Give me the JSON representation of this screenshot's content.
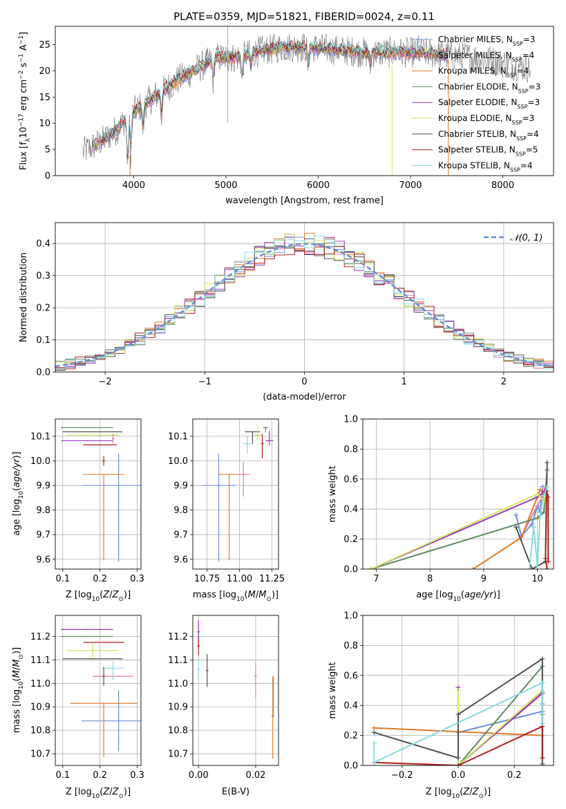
{
  "colors": {
    "Chabrier MILES": "#6a8fdc",
    "Salpeter MILES": "#e07ba6",
    "Kroupa MILES": "#e07a28",
    "Chabrier ELODIE": "#5e8a62",
    "Salpeter ELODIE": "#9a35b7",
    "Kroupa ELODIE": "#d0e55c",
    "Chabrier STELIB": "#505050",
    "Salpeter STELIB": "#b01c1c",
    "Kroupa STELIB": "#86dbe0",
    "normal": "#5b8fd8"
  },
  "chart_data": [
    {
      "id": "spectrum",
      "type": "line",
      "title": "PLATE=0359, MJD=51821, FIBERID=0024, z=0.11",
      "xlabel": "wavelength [Angstrom, rest frame]",
      "ylabel_parts": [
        "Flux [f",
        "λ",
        "10",
        "−17",
        " erg cm",
        "−2",
        " s",
        "−1",
        " A",
        "−1",
        "]"
      ],
      "xlim": [
        3150,
        8550
      ],
      "ylim": [
        0,
        28.5
      ],
      "xticks": [
        4000,
        5000,
        6000,
        7000,
        8000
      ],
      "yticks": [
        0,
        5,
        10,
        15,
        20,
        25
      ],
      "grid": false,
      "legend_position": "right",
      "legend": [
        {
          "name": "Chabrier MILES",
          "nssp": "3"
        },
        {
          "name": "Salpeter MILES",
          "nssp": "4"
        },
        {
          "name": "Kroupa MILES",
          "nssp": "4"
        },
        {
          "name": "Chabrier ELODIE",
          "nssp": "3"
        },
        {
          "name": "Salpeter ELODIE",
          "nssp": "3"
        },
        {
          "name": "Kroupa ELODIE",
          "nssp": "3"
        },
        {
          "name": "Chabrier STELIB",
          "nssp": "4"
        },
        {
          "name": "Salpeter STELIB",
          "nssp": "5"
        },
        {
          "name": "Kroupa STELIB",
          "nssp": "4"
        }
      ],
      "legend_nssp_label": "N",
      "legend_nssp_sub": "SSP",
      "continuum": {
        "x": [
          3450,
          3550,
          3650,
          3800,
          3950,
          4100,
          4300,
          4500,
          4700,
          4900,
          5100,
          5300,
          5600,
          5900,
          6200,
          6500,
          6800,
          7100,
          7400,
          7700,
          8000,
          8300
        ],
        "y": [
          4.5,
          5.5,
          6.5,
          8.5,
          11.5,
          13.5,
          16,
          18.5,
          20.5,
          22.5,
          22.5,
          23.5,
          24.5,
          24.5,
          24,
          23.5,
          23.5,
          23.5,
          23,
          22.5,
          21.5,
          20.5
        ]
      },
      "observed_range": [
        3450,
        8300
      ],
      "model_range": [
        3550,
        7400
      ]
    },
    {
      "id": "residuals",
      "type": "step",
      "xlabel": "(data-model)/error",
      "ylabel": "Normed distribution",
      "xlim": [
        -2.5,
        2.5
      ],
      "ylim": [
        0,
        0.465
      ],
      "xticks": [
        -2,
        -1,
        0,
        1,
        2
      ],
      "yticks": [
        0.0,
        0.1,
        0.2,
        0.3,
        0.4
      ],
      "grid": true,
      "legend_position": "top-right",
      "normal_label": "𝒩(0, 1)",
      "bin_width": 0.1
    },
    {
      "id": "age_vs_Z",
      "type": "errorbar",
      "xlabel": "Z [log10(Z/Z⊙)]",
      "ylabel": "age [log10(age/yr)]",
      "xlim": [
        0.08,
        0.31
      ],
      "ylim": [
        9.56,
        10.17
      ],
      "xticks": [
        0.1,
        0.2,
        0.3
      ],
      "yticks": [
        9.6,
        9.7,
        9.8,
        9.9,
        10.0,
        10.1
      ],
      "grid": true,
      "points": [
        {
          "model": "Chabrier MILES",
          "x": 0.25,
          "xerr": 0.1,
          "y": 9.9,
          "yerr_lo": 0.31,
          "yerr_hi": 0.13
        },
        {
          "model": "Kroupa MILES",
          "x": 0.21,
          "xerr": 0.055,
          "y": 9.945,
          "yerr_lo": 0.35,
          "yerr_hi": 0.0
        },
        {
          "model": "Salpeter STELIB",
          "x": 0.21,
          "xerr": 0.0,
          "y": 10.0,
          "yerr_lo": 0.02,
          "yerr_hi": 0.02
        },
        {
          "model": "Salpeter ELODIE",
          "x": 0.165,
          "xerr": 0.07,
          "y": 10.082,
          "yerr_lo": 0.0,
          "yerr_hi": 0.0
        },
        {
          "model": "Chabrier ELODIE",
          "x": 0.165,
          "xerr": 0.07,
          "y": 10.135,
          "yerr_lo": 0.0,
          "yerr_hi": 0.0
        },
        {
          "model": "Kroupa ELODIE",
          "x": 0.18,
          "xerr": 0.07,
          "y": 10.105,
          "yerr_lo": 0.0,
          "yerr_hi": 0.0
        },
        {
          "model": "Chabrier STELIB",
          "x": 0.18,
          "xerr": 0.08,
          "y": 10.118,
          "yerr_lo": 0.0,
          "yerr_hi": 0.0
        },
        {
          "model": "Salpeter MILES",
          "x": 0.235,
          "xerr": 0.0,
          "y": 10.09,
          "yerr_lo": 0.02,
          "yerr_hi": 0.02
        },
        {
          "model": "Salpeter STELIB",
          "x": 0.2,
          "xerr": 0.045,
          "y": 10.065,
          "yerr_lo": 0.0,
          "yerr_hi": 0.0
        }
      ]
    },
    {
      "id": "age_vs_mass",
      "type": "errorbar",
      "xlabel": "mass [log10(M/M⊙)]",
      "xlim": [
        10.64,
        11.3
      ],
      "ylim": [
        9.56,
        10.17
      ],
      "xticks": [
        10.75,
        11.0,
        11.25
      ],
      "yticks": [
        9.6,
        9.7,
        9.8,
        9.9,
        10.0,
        10.1
      ],
      "grid": true,
      "points": [
        {
          "model": "Chabrier MILES",
          "x": 10.84,
          "xerr": 0.13,
          "y": 9.9,
          "yerr_lo": 0.31,
          "yerr_hi": 0.13
        },
        {
          "model": "Kroupa MILES",
          "x": 10.92,
          "xerr": 0.08,
          "y": 9.945,
          "yerr_lo": 0.35,
          "yerr_hi": 0.0
        },
        {
          "model": "Salpeter MILES",
          "x": 11.03,
          "xerr": 0.05,
          "y": 9.945,
          "yerr_lo": 0.09,
          "yerr_hi": 0.05
        },
        {
          "model": "Kroupa STELIB",
          "x": 11.06,
          "xerr": 0.03,
          "y": 10.07,
          "yerr_lo": 0.04,
          "yerr_hi": 0.03
        },
        {
          "model": "Chabrier STELIB",
          "x": 11.1,
          "xerr": 0.06,
          "y": 10.118,
          "yerr_lo": 0.05,
          "yerr_hi": 0.0
        },
        {
          "model": "Kroupa ELODIE",
          "x": 11.14,
          "xerr": 0.03,
          "y": 10.105,
          "yerr_lo": 0.02,
          "yerr_hi": 0.04
        },
        {
          "model": "Chabrier ELODIE",
          "x": 11.2,
          "xerr": 0.02,
          "y": 10.135,
          "yerr_lo": 0.02,
          "yerr_hi": 0.0
        },
        {
          "model": "Salpeter STELIB",
          "x": 11.175,
          "xerr": 0.0,
          "y": 10.07,
          "yerr_lo": 0.06,
          "yerr_hi": 0.04
        },
        {
          "model": "Salpeter ELODIE",
          "x": 11.23,
          "xerr": 0.03,
          "y": 10.082,
          "yerr_lo": 0.02,
          "yerr_hi": 0.04
        }
      ]
    },
    {
      "id": "weight_vs_age",
      "type": "line",
      "xlabel": "age [log10(age/yr)]",
      "ylabel": "mass weight",
      "xlim": [
        6.75,
        10.3
      ],
      "ylim": [
        0,
        1.0
      ],
      "xticks": [
        7,
        8,
        9,
        10
      ],
      "yticks": [
        0.0,
        0.2,
        0.4,
        0.6,
        0.8,
        1.0
      ],
      "grid": true,
      "series": [
        {
          "model": "Chabrier MILES",
          "x": [
            9.6,
            9.7,
            9.9,
            10.0,
            10.05,
            10.1
          ],
          "y": [
            0.36,
            0.22,
            0.3,
            0.42,
            0.38,
            0.55
          ]
        },
        {
          "model": "Salpeter MILES",
          "x": [
            9.7,
            10.1,
            10.15
          ],
          "y": [
            0.22,
            0.49,
            0.55
          ]
        },
        {
          "model": "Kroupa MILES",
          "x": [
            8.8,
            9.7,
            10.05,
            10.12
          ],
          "y": [
            0.0,
            0.21,
            0.53,
            0.5
          ]
        },
        {
          "model": "Chabrier ELODIE",
          "x": [
            6.9,
            10.0,
            10.12,
            10.18
          ],
          "y": [
            0.0,
            0.34,
            0.38,
            0.66
          ]
        },
        {
          "model": "Salpeter ELODIE",
          "x": [
            6.9,
            10.0,
            10.13,
            10.18
          ],
          "y": [
            0.0,
            0.48,
            0.52,
            0.55
          ]
        },
        {
          "model": "Kroupa ELODIE",
          "x": [
            6.9,
            10.0,
            10.12,
            10.18
          ],
          "y": [
            0.0,
            0.5,
            0.45,
            0.55
          ]
        },
        {
          "model": "Chabrier STELIB",
          "x": [
            9.6,
            9.9,
            10.15,
            10.18
          ],
          "y": [
            0.28,
            0.0,
            0.05,
            0.71
          ]
        },
        {
          "model": "Salpeter STELIB",
          "x": [
            10.18,
            10.15,
            10.17,
            10.2,
            10.2
          ],
          "y": [
            0.0,
            0.07,
            0.52,
            0.48,
            0.05
          ]
        },
        {
          "model": "Kroupa STELIB",
          "x": [
            9.85,
            9.93,
            10.0,
            10.05,
            10.12,
            10.18
          ],
          "y": [
            0.0,
            0.28,
            0.02,
            0.36,
            0.49,
            0.55
          ]
        }
      ]
    },
    {
      "id": "mass_vs_Z",
      "type": "errorbar",
      "xlabel": "Z [log10(Z/Z⊙)]",
      "ylabel": "mass [log10(M/M⊙)]",
      "xlim": [
        0.08,
        0.31
      ],
      "ylim": [
        10.65,
        11.29
      ],
      "xticks": [
        0.1,
        0.2,
        0.3
      ],
      "yticks": [
        10.7,
        10.8,
        10.9,
        11.0,
        11.1,
        11.2
      ],
      "grid": true,
      "points": [
        {
          "model": "Chabrier MILES",
          "x": 0.25,
          "xerr": 0.1,
          "y": 10.84,
          "yerr_lo": 0.13,
          "yerr_hi": 0.13
        },
        {
          "model": "Kroupa MILES",
          "x": 0.21,
          "xerr": 0.09,
          "y": 10.915,
          "yerr_lo": 0.23,
          "yerr_hi": 0.0
        },
        {
          "model": "Salpeter MILES",
          "x": 0.235,
          "xerr": 0.055,
          "y": 11.03,
          "yerr_lo": 0.0,
          "yerr_hi": 0.0
        },
        {
          "model": "Kroupa STELIB",
          "x": 0.235,
          "xerr": 0.03,
          "y": 11.065,
          "yerr_lo": 0.05,
          "yerr_hi": 0.03
        },
        {
          "model": "Chabrier STELIB",
          "x": 0.21,
          "xerr": 0.0,
          "y": 11.03,
          "yerr_lo": 0.04,
          "yerr_hi": 0.04
        },
        {
          "model": "Salpeter STELIB",
          "x": 0.21,
          "xerr": 0.055,
          "y": 11.175,
          "yerr_lo": 0.0,
          "yerr_hi": 0.0
        },
        {
          "model": "Kroupa ELODIE",
          "x": 0.18,
          "xerr": 0.07,
          "y": 11.14,
          "yerr_lo": 0.03,
          "yerr_hi": 0.03
        },
        {
          "model": "Chabrier ELODIE",
          "x": 0.165,
          "xerr": 0.07,
          "y": 11.2,
          "yerr_lo": 0.0,
          "yerr_hi": 0.0
        },
        {
          "model": "Salpeter ELODIE",
          "x": 0.165,
          "xerr": 0.07,
          "y": 11.23,
          "yerr_lo": 0.0,
          "yerr_hi": 0.0
        },
        {
          "model": "Chabrier STELIB",
          "x": 0.18,
          "xerr": 0.08,
          "y": 11.105,
          "yerr_lo": 0.0,
          "yerr_hi": 0.0
        }
      ]
    },
    {
      "id": "mass_vs_ebv",
      "type": "errorbar",
      "xlabel": "E(B-V)",
      "xlim": [
        -0.002,
        0.028
      ],
      "ylim": [
        10.65,
        11.29
      ],
      "xticks": [
        0.0,
        0.02
      ],
      "yticks": [
        10.7,
        10.8,
        10.9,
        11.0,
        11.1,
        11.2
      ],
      "grid": true,
      "points": [
        {
          "model": "Kroupa MILES",
          "x": 0.026,
          "xerr": 0.0,
          "y": 10.86,
          "yerr_lo": 0.18,
          "yerr_hi": 0.17
        },
        {
          "model": "Chabrier MILES",
          "x": 0.0262,
          "xerr": 0.0,
          "y": 10.86,
          "yerr_lo": 0.0,
          "yerr_hi": 0.17
        },
        {
          "model": "Salpeter MILES",
          "x": 0.02,
          "xerr": 0.0,
          "y": 11.03,
          "yerr_lo": 0.09,
          "yerr_hi": 0.06
        },
        {
          "model": "Chabrier STELIB",
          "x": 0.003,
          "xerr": 0.0,
          "y": 11.055,
          "yerr_lo": 0.07,
          "yerr_hi": 0.07
        },
        {
          "model": "Kroupa STELIB",
          "x": 0.0,
          "xerr": 0.0,
          "y": 11.06,
          "yerr_lo": 0.04,
          "yerr_hi": 0.04
        },
        {
          "model": "Salpeter ELODIE",
          "x": 0.0,
          "xerr": 0.0,
          "y": 11.22,
          "yerr_lo": 0.04,
          "yerr_hi": 0.05
        },
        {
          "model": "Salpeter STELIB",
          "x": 0.0,
          "xerr": 0.0,
          "y": 11.16,
          "yerr_lo": 0.04,
          "yerr_hi": 0.04
        }
      ]
    },
    {
      "id": "weight_vs_Z",
      "type": "line",
      "xlabel": "Z [log10(Z/Z⊙)]",
      "ylabel": "mass weight",
      "xlim": [
        -0.34,
        0.34
      ],
      "ylim": [
        0,
        1.0
      ],
      "xticks": [
        -0.2,
        0.0,
        0.2
      ],
      "yticks": [
        0.0,
        0.2,
        0.4,
        0.6,
        0.8,
        1.0
      ],
      "grid": true,
      "series": [
        {
          "model": "Chabrier MILES",
          "x": [
            0.0,
            0.3,
            0.3,
            0.3
          ],
          "y": [
            0.22,
            0.36,
            0.41,
            0.0
          ]
        },
        {
          "model": "Salpeter MILES",
          "x": [
            0.0,
            0.3
          ],
          "y": [
            0.0,
            0.49
          ]
        },
        {
          "model": "Kroupa MILES",
          "x": [
            -0.3,
            0.3
          ],
          "y": [
            0.25,
            0.2
          ]
        },
        {
          "model": "Chabrier ELODIE",
          "x": [
            0.0,
            0.3,
            0.3
          ],
          "y": [
            0.0,
            0.66,
            0.34
          ]
        },
        {
          "model": "Salpeter ELODIE",
          "x": [
            0.0,
            0.0,
            0.3,
            0.3
          ],
          "y": [
            0.52,
            0.0,
            0.48,
            0.55
          ]
        },
        {
          "model": "Kroupa ELODIE",
          "x": [
            0.0,
            0.0,
            0.3,
            0.3
          ],
          "y": [
            0.5,
            0.0,
            0.5,
            0.55
          ]
        },
        {
          "model": "Chabrier STELIB",
          "x": [
            -0.3,
            0.0,
            0.0,
            0.3,
            0.3
          ],
          "y": [
            0.22,
            0.05,
            0.34,
            0.71,
            0.01
          ]
        },
        {
          "model": "Salpeter STELIB",
          "x": [
            -0.3,
            0.0,
            0.3,
            0.3
          ],
          "y": [
            0.02,
            0.0,
            0.26,
            0.05
          ]
        },
        {
          "model": "Kroupa STELIB",
          "x": [
            -0.3,
            -0.3,
            0.3,
            0.3
          ],
          "y": [
            0.15,
            0.02,
            0.55,
            0.28
          ]
        }
      ]
    }
  ]
}
